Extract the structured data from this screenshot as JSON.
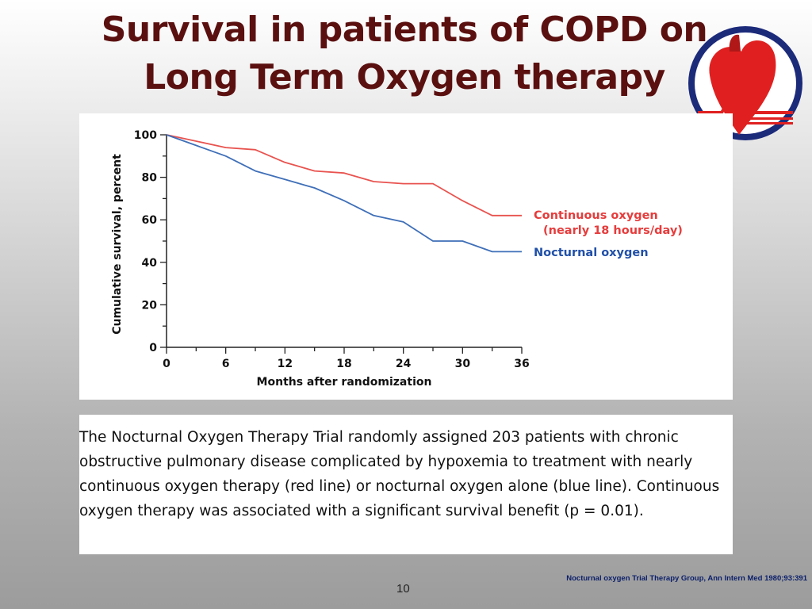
{
  "slide": {
    "title_line1": "Survival in patients of COPD on",
    "title_line2": "Long Term Oxygen therapy",
    "caption": "The Nocturnal Oxygen Therapy Trial randomly assigned 203 patients with chronic obstructive pulmonary disease complicated by hypoxemia to treatment with nearly continuous oxygen therapy (red line) or nocturnal oxygen alone (blue line). Continuous oxygen therapy was associated with a significant survival benefit (p = 0.01).",
    "citation": "Nocturnal oxygen Trial Therapy  Group, Ann Intern Med 1980;93:391",
    "page_number": "10",
    "logo_icon": "heart-society-logo-icon",
    "colors": {
      "title": "#5b1010",
      "red_series": "#e8534f",
      "blue_series": "#3f6fb8",
      "legend_red": "#e63c3c",
      "legend_blue": "#1f4fa8"
    }
  },
  "chart_data": {
    "type": "line",
    "xlabel": "Months after randomization",
    "ylabel": "Cumulative survival, percent",
    "xlim": [
      0,
      36
    ],
    "ylim": [
      0,
      100
    ],
    "xticks": [
      "0",
      "6",
      "12",
      "18",
      "24",
      "30",
      "36"
    ],
    "yticks": [
      "0",
      "20",
      "40",
      "60",
      "80",
      "100"
    ],
    "grid": false,
    "legend": "right",
    "series": [
      {
        "name": "Continuous oxygen",
        "name_line2": "(nearly 18 hours/day)",
        "color": "#e8534f",
        "x": [
          0,
          3,
          6,
          9,
          12,
          15,
          18,
          21,
          24,
          27,
          30,
          33,
          36
        ],
        "y": [
          100,
          97,
          94,
          93,
          87,
          83,
          82,
          78,
          77,
          77,
          69,
          62,
          62
        ]
      },
      {
        "name": "Nocturnal oxygen",
        "color": "#3f6fb8",
        "x": [
          0,
          3,
          6,
          9,
          12,
          15,
          18,
          21,
          24,
          27,
          30,
          33,
          36
        ],
        "y": [
          100,
          95,
          90,
          83,
          79,
          75,
          69,
          62,
          59,
          50,
          50,
          45,
          45
        ]
      }
    ]
  }
}
